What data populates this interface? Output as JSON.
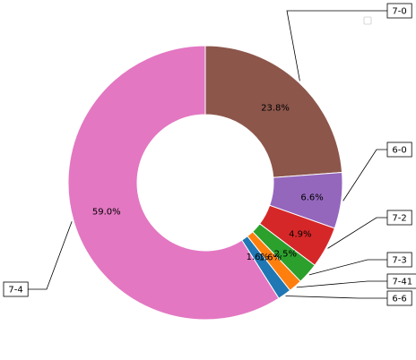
{
  "chart_data": {
    "type": "pie",
    "donut": true,
    "title": "",
    "start_angle_deg": 90,
    "direction": "clockwise",
    "slices": [
      {
        "label": "7-0",
        "pct_label": "23.8%",
        "value": 23.8,
        "color": "#8c564b"
      },
      {
        "label": "6-0",
        "pct_label": "6.6%",
        "value": 6.6,
        "color": "#9467bd"
      },
      {
        "label": "7-2",
        "pct_label": "4.9%",
        "value": 4.9,
        "color": "#d62728"
      },
      {
        "label": "7-3",
        "pct_label": "2.5%",
        "value": 2.5,
        "color": "#2ca02c"
      },
      {
        "label": "7-41",
        "pct_label": "1.6%",
        "value": 1.6,
        "color": "#ff7f0e"
      },
      {
        "label": "6-6",
        "pct_label": "1.6%",
        "value": 1.6,
        "color": "#1f77b4"
      },
      {
        "label": "7-4",
        "pct_label": "59.0%",
        "value": 59.0,
        "color": "#e377c2"
      }
    ],
    "legend": {
      "placement": "top-right",
      "entries": []
    }
  }
}
